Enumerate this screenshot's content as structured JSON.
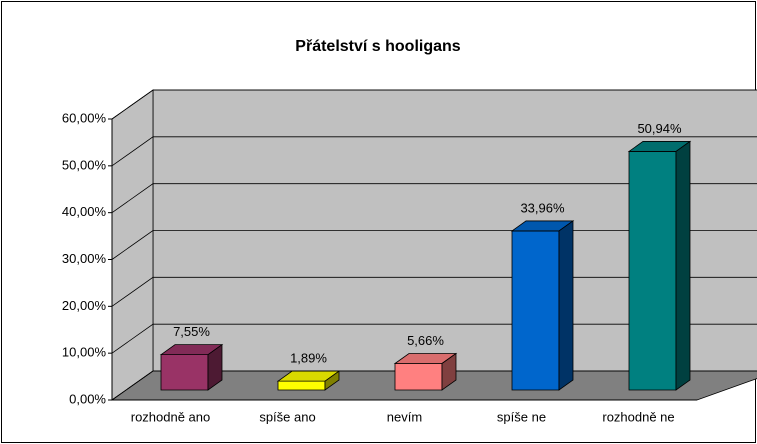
{
  "chart_data": {
    "type": "bar3d",
    "title": "Přátelství s hooligans",
    "categories": [
      "rozhodně ano",
      "spíše ano",
      "nevím",
      "spíše ne",
      "rozhodně ne"
    ],
    "values": [
      7.55,
      1.89,
      5.66,
      33.96,
      50.94
    ],
    "value_labels": [
      "7,55%",
      "1,89%",
      "5,66%",
      "33,96%",
      "50,94%"
    ],
    "colors": [
      "#993366",
      "#ffff00",
      "#ff8080",
      "#0066cc",
      "#008080"
    ],
    "ylim": [
      0,
      60
    ],
    "yticks": [
      {
        "value": 0,
        "label": "0,00%"
      },
      {
        "value": 10,
        "label": "10,00%"
      },
      {
        "value": 20,
        "label": "20,00%"
      },
      {
        "value": 30,
        "label": "30,00%"
      },
      {
        "value": 40,
        "label": "40,00%"
      },
      {
        "value": 50,
        "label": "50,00%"
      },
      {
        "value": 60,
        "label": "60,00%"
      }
    ],
    "grid": true
  }
}
